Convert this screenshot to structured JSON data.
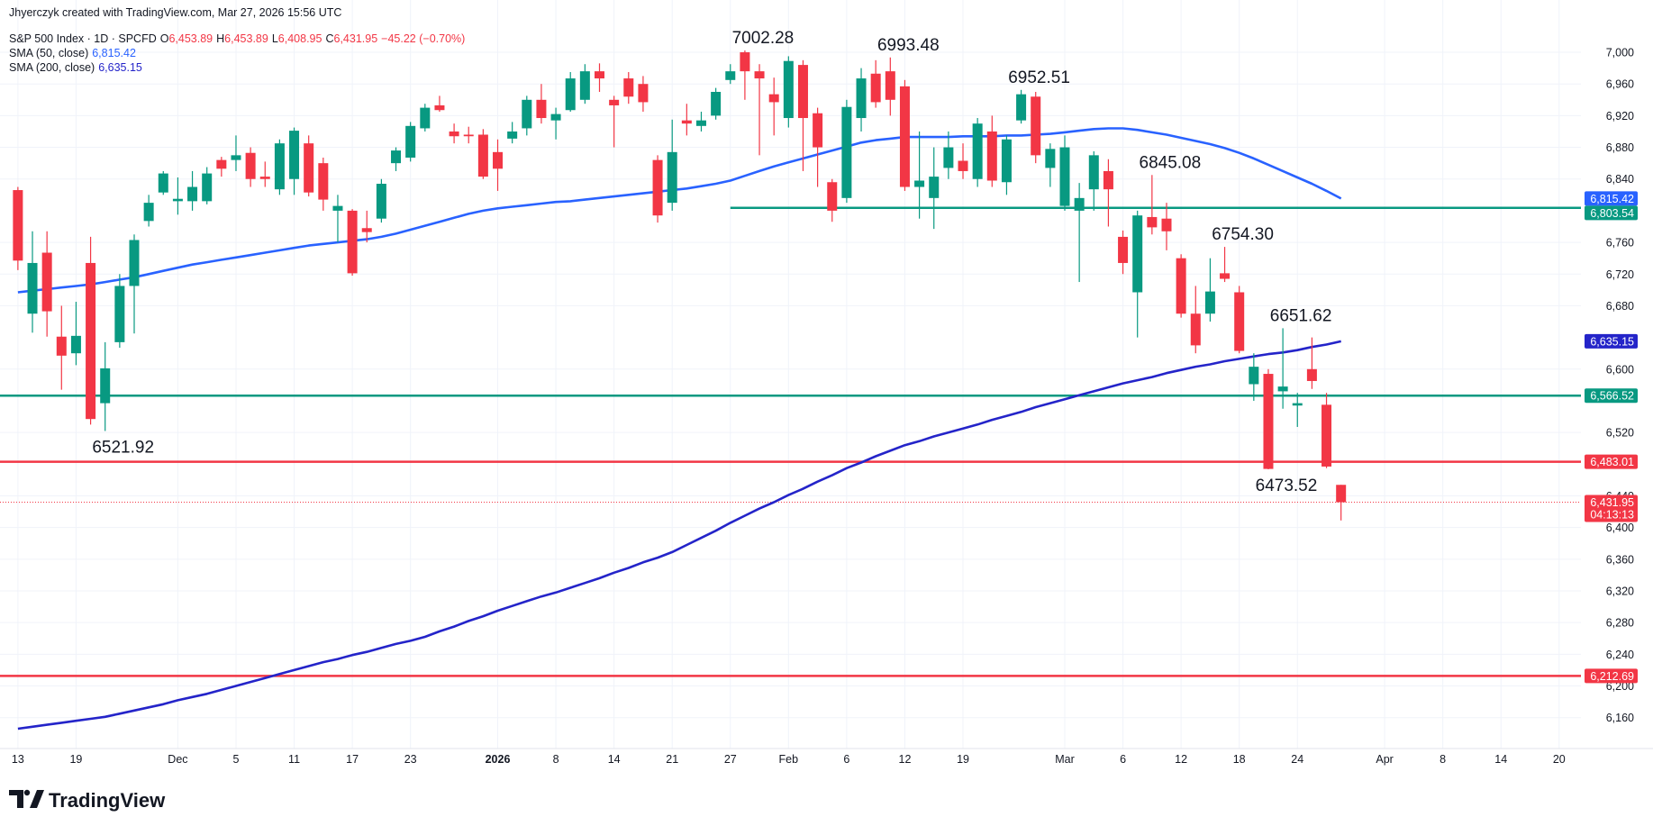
{
  "header": {
    "credit": "Jhyerczyk created with TradingView.com, Mar 27, 2026 15:56 UTC",
    "logo": "TradingView"
  },
  "chart_data": {
    "type": "candlestick",
    "title": "S&P 500 Index · 1D · SPCFD",
    "ohlc_legend": [
      {
        "key": "O",
        "value": "6,453.89"
      },
      {
        "key": "H",
        "value": "6,453.89"
      },
      {
        "key": "L",
        "value": "6,408.95"
      },
      {
        "key": "C",
        "value": "6,431.95"
      }
    ],
    "change_label": "−45.22 (−0.70%)",
    "categories": [
      "13",
      null,
      null,
      null,
      "19",
      null,
      null,
      null,
      null,
      null,
      null,
      "Dec",
      null,
      null,
      null,
      "5",
      null,
      null,
      null,
      "11",
      null,
      null,
      null,
      "17",
      null,
      null,
      null,
      "23",
      null,
      null,
      null,
      null,
      null,
      "2026",
      null,
      null,
      null,
      "8",
      null,
      null,
      null,
      "14",
      null,
      null,
      null,
      "21",
      null,
      null,
      null,
      "27",
      null,
      null,
      null,
      "Feb",
      null,
      null,
      null,
      "6",
      null,
      null,
      null,
      "12",
      null,
      null,
      null,
      "19",
      null,
      null,
      null,
      null,
      null,
      null,
      "Mar",
      null,
      null,
      null,
      "6",
      null,
      null,
      null,
      "12",
      null,
      null,
      null,
      "18",
      null,
      null,
      null,
      "24",
      null,
      null,
      null,
      null,
      null,
      "Apr",
      null,
      null,
      null,
      "8",
      null,
      null,
      null,
      "14",
      null,
      null,
      null,
      "20",
      null
    ],
    "open": [
      6826,
      6670,
      6747,
      6641,
      6620,
      6734,
      6557,
      6634,
      6705,
      6787,
      6823,
      6812,
      6812,
      6812,
      6864,
      6864,
      6873,
      6843,
      6827,
      6840,
      6885,
      6860,
      6800,
      6800,
      6778,
      6790,
      6860,
      6867,
      6904,
      6933,
      6900,
      6896,
      6896,
      6874,
      6891,
      6904,
      6940,
      6914,
      6927,
      6940,
      6976,
      6940,
      6967,
      6960,
      6864,
      6810,
      6914,
      6907,
      6920,
      6965,
      7000,
      6976,
      6947,
      6917,
      6984,
      6923,
      6836,
      6816,
      6917,
      6973,
      6976,
      6957,
      6830,
      6816,
      6854,
      6863,
      6840,
      6900,
      6836,
      6914,
      6944,
      6854,
      6806,
      6800,
      6827,
      6850,
      6767,
      6697,
      6792,
      6790,
      6740,
      6670,
      6670,
      6721,
      6697,
      6581,
      6594,
      6572,
      6554,
      6600,
      6555,
      6453.89,
      null,
      null,
      null,
      null,
      null,
      null,
      null,
      null,
      null,
      null,
      null,
      null,
      null,
      null,
      null,
      null
    ],
    "high": [
      6830,
      6774,
      6774,
      6680,
      6685,
      6767,
      6634,
      6720,
      6770,
      6820,
      6850,
      6842,
      6850,
      6855,
      6868,
      6895,
      6880,
      6862,
      6890,
      6905,
      6895,
      6867,
      6820,
      6802,
      6800,
      6840,
      6880,
      6912,
      6935,
      6945,
      6910,
      6906,
      6903,
      6890,
      6912,
      6945,
      6960,
      6930,
      6975,
      6985,
      6986,
      6945,
      6975,
      6970,
      6870,
      6915,
      6935,
      6925,
      6955,
      6985,
      7002.28,
      6985,
      6968,
      6995,
      6990,
      6930,
      6840,
      6940,
      6980,
      6990,
      6993.48,
      6965,
      6900,
      6880,
      6900,
      6885,
      6917,
      6920,
      6895,
      6952.51,
      6950,
      6885,
      6895,
      6835,
      6875,
      6865,
      6775,
      6800,
      6845.08,
      6810,
      6745,
      6705,
      6740,
      6754.3,
      6705,
      6620,
      6600,
      6651.62,
      6570,
      6640,
      6570,
      6453.89,
      null,
      null,
      null,
      null,
      null,
      null,
      null,
      null,
      null,
      null,
      null,
      null,
      null,
      null,
      null,
      null
    ],
    "low": [
      6725,
      6646,
      6641,
      6574,
      6605,
      6530,
      6521.92,
      6627,
      6645,
      6780,
      6820,
      6795,
      6800,
      6808,
      6843,
      6850,
      6830,
      6830,
      6820,
      6820,
      6818,
      6800,
      6760,
      6718,
      6760,
      6785,
      6850,
      6862,
      6900,
      6925,
      6885,
      6885,
      6840,
      6825,
      6885,
      6895,
      6910,
      6890,
      6925,
      6935,
      6950,
      6880,
      6935,
      6925,
      6785,
      6800,
      6895,
      6900,
      6915,
      6960,
      6940,
      6870,
      6895,
      6905,
      6850,
      6830,
      6786,
      6810,
      6900,
      6930,
      6920,
      6825,
      6790,
      6777,
      6840,
      6840,
      6830,
      6830,
      6820,
      6910,
      6860,
      6830,
      6800,
      6710,
      6800,
      6780,
      6720,
      6640,
      6770,
      6750,
      6665,
      6620,
      6660,
      6710,
      6620,
      6560,
      6473.52,
      6550,
      6527,
      6575,
      6475,
      6408.95,
      null,
      null,
      null,
      null,
      null,
      null,
      null,
      null,
      null,
      null,
      null,
      null,
      null,
      null,
      null,
      null
    ],
    "close": [
      6737,
      6734,
      6673,
      6617,
      6642,
      6537,
      6601,
      6705,
      6763,
      6810,
      6847,
      6815,
      6830,
      6847,
      6853,
      6870,
      6840,
      6840,
      6885,
      6901,
      6823,
      6814,
      6806,
      6721,
      6773,
      6834,
      6876,
      6907,
      6930,
      6927,
      6894,
      6894,
      6843,
      6853,
      6900,
      6940,
      6917,
      6922,
      6967,
      6976,
      6967,
      6933,
      6944,
      6937,
      6794,
      6874,
      6910,
      6914,
      6950,
      6976,
      6976,
      6967,
      6937,
      6989,
      6917,
      6880,
      6800,
      6931,
      6967,
      6937,
      6940,
      6830,
      6838,
      6843,
      6880,
      6850,
      6910,
      6838,
      6890,
      6947,
      6870,
      6878,
      6880,
      6816,
      6870,
      6827,
      6734,
      6794,
      6779,
      6774,
      6670,
      6630,
      6698,
      6714,
      6623,
      6603,
      6474,
      6578,
      6557,
      6585,
      6477,
      6431.95,
      null,
      null,
      null,
      null,
      null,
      null,
      null,
      null,
      null,
      null,
      null,
      null,
      null,
      null,
      null,
      null
    ],
    "up_color": "#089981",
    "down_color": "#f23645",
    "series": [
      {
        "name": "SMA (50, close)",
        "color": "#2962ff",
        "last_label": "6,815.42",
        "values": [
          6697,
          6699,
          6701,
          6703,
          6705,
          6707,
          6710,
          6713,
          6716,
          6720,
          6724,
          6728,
          6732,
          6735,
          6738,
          6741,
          6744,
          6747,
          6750,
          6753,
          6756,
          6758,
          6760,
          6762,
          6764,
          6767,
          6771,
          6776,
          6781,
          6786,
          6791,
          6796,
          6800,
          6803,
          6805,
          6807,
          6809,
          6811,
          6812,
          6814,
          6816,
          6818,
          6820,
          6822,
          6824,
          6826,
          6828,
          6831,
          6834,
          6838,
          6844,
          6850,
          6856,
          6861,
          6866,
          6871,
          6876,
          6881,
          6886,
          6889,
          6891,
          6893,
          6893,
          6893,
          6893,
          6894,
          6894,
          6894,
          6895,
          6895,
          6896,
          6897,
          6899,
          6901,
          6903,
          6904,
          6904,
          6902,
          6899,
          6896,
          6892,
          6888,
          6884,
          6879,
          6873,
          6866,
          6858,
          6850,
          6842,
          6834,
          6825,
          6815.42,
          null,
          null,
          null,
          null,
          null,
          null,
          null,
          null,
          null,
          null,
          null,
          null,
          null,
          null,
          null,
          null
        ]
      },
      {
        "name": "SMA (200, close)",
        "color": "#2424c9",
        "last_label": "6,635.15",
        "values": [
          6146,
          6148.5,
          6151,
          6153.5,
          6156,
          6158.5,
          6161,
          6165,
          6169,
          6173,
          6177,
          6182,
          6186,
          6190,
          6195,
          6200,
          6205,
          6210,
          6215,
          6220,
          6225,
          6230,
          6234,
          6239,
          6243,
          6248,
          6253,
          6257,
          6262,
          6269,
          6275,
          6282,
          6288,
          6295,
          6301,
          6307,
          6313,
          6318,
          6324,
          6330,
          6336,
          6343,
          6349,
          6356,
          6362,
          6369,
          6378,
          6387,
          6396,
          6406,
          6415,
          6424,
          6432,
          6441,
          6449,
          6458,
          6466,
          6475,
          6482,
          6490,
          6497,
          6504,
          6509,
          6515,
          6520,
          6525,
          6530,
          6536,
          6541,
          6546,
          6552,
          6557,
          6562,
          6567,
          6572,
          6577,
          6582,
          6586,
          6590,
          6595,
          6599,
          6603,
          6606,
          6610,
          6613,
          6616,
          6619,
          6621,
          6624,
          6628,
          6631,
          6635.15,
          null,
          null,
          null,
          null,
          null,
          null,
          null,
          null,
          null,
          null,
          null,
          null,
          null,
          null,
          null,
          null
        ]
      }
    ],
    "levels": [
      {
        "value": 6803.54,
        "label": "6,803.54",
        "color": "#089981",
        "from": "27"
      },
      {
        "value": 6566.52,
        "label": "6,566.52",
        "color": "#089981"
      },
      {
        "value": 6483.01,
        "label": "6,483.01",
        "color": "#f23645"
      },
      {
        "value": 6212.69,
        "label": "6,212.69",
        "color": "#f23645"
      }
    ],
    "last_price_label": "6,431.95",
    "countdown": "04:13:13",
    "annotations": [
      7002.28,
      6993.48,
      6952.51,
      6845.08,
      {
        "value": 6754.3,
        "label": "6754.30"
      },
      6651.62,
      6521.92,
      6473.52
    ],
    "ylim": [
      6121,
      7066
    ],
    "yticks": [
      {
        "value": 6160,
        "label": "6,160"
      },
      {
        "value": 6200,
        "label": "6,200"
      },
      {
        "value": 6240,
        "label": "6,240"
      },
      {
        "value": 6280,
        "label": "6,280"
      },
      {
        "value": 6320,
        "label": "6,320"
      },
      {
        "value": 6360,
        "label": "6,360"
      },
      {
        "value": 6400,
        "label": "6,400"
      },
      {
        "value": 6440,
        "label": "6,440"
      },
      {
        "value": 6520,
        "label": "6,520"
      },
      {
        "value": 6600,
        "label": "6,600"
      },
      {
        "value": 6680,
        "label": "6,680"
      },
      {
        "value": 6720,
        "label": "6,720"
      },
      {
        "value": 6760,
        "label": "6,760"
      },
      {
        "value": 6840,
        "label": "6,840"
      },
      {
        "value": 6880,
        "label": "6,880"
      },
      {
        "value": 6920,
        "label": "6,920"
      },
      {
        "value": 6960,
        "label": "6,960"
      },
      {
        "value": 7000,
        "label": "7,000"
      }
    ],
    "grid": true
  }
}
